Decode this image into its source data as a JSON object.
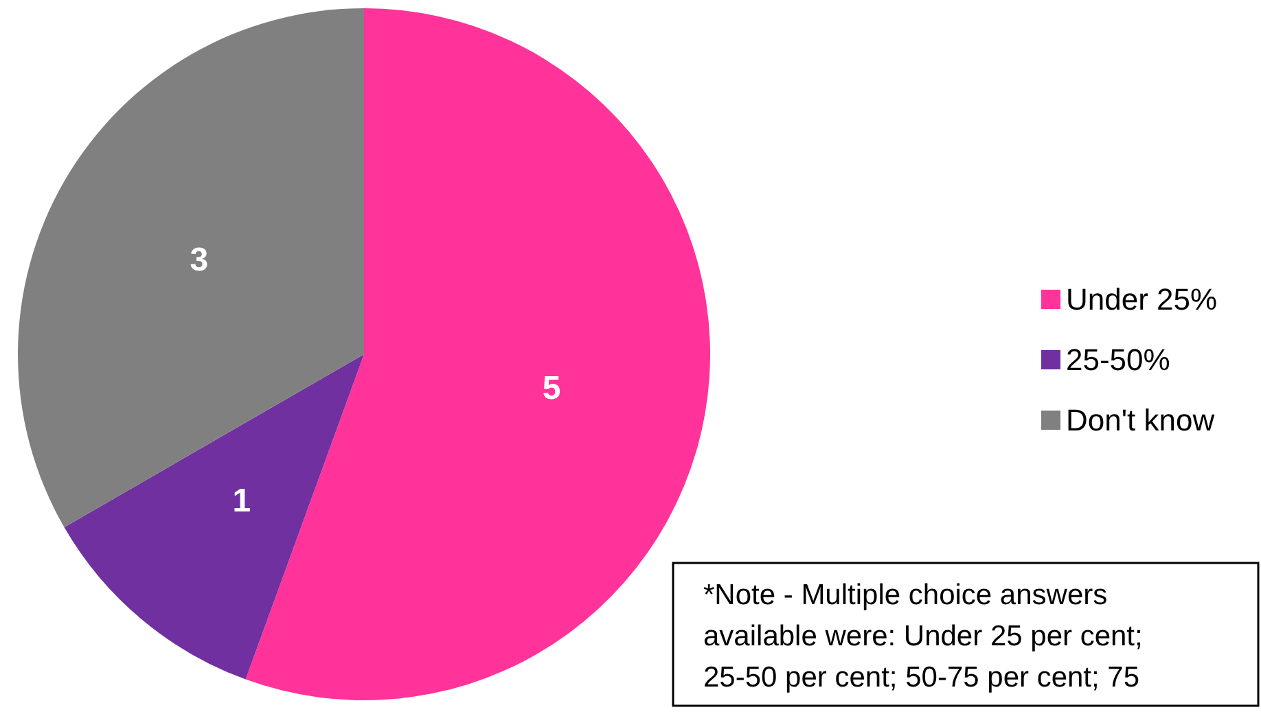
{
  "chart_data": {
    "type": "pie",
    "categories": [
      "Under 25%",
      "25-50%",
      "Don't know"
    ],
    "values": [
      5,
      1,
      3
    ],
    "colors": [
      "#ff3399",
      "#7030a0",
      "#808080"
    ],
    "data_labels": true,
    "legend": "right",
    "annotations": [
      "*Note - Multiple choice answers available were: Under 25 per cent; 25-50 per cent; 50-75 per cent; 75"
    ]
  }
}
